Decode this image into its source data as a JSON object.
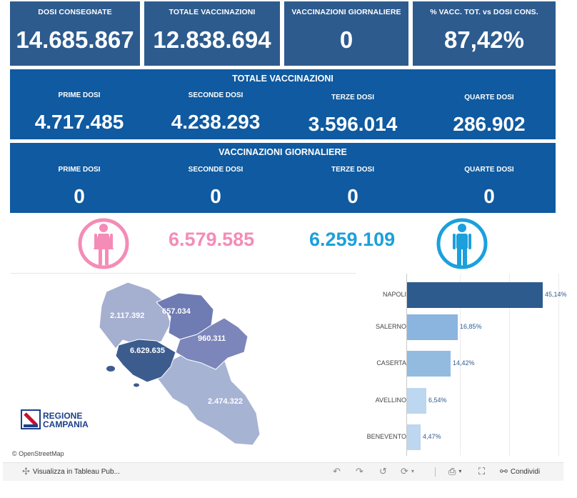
{
  "kpis": [
    {
      "label": "DOSI  CONSEGNATE",
      "value": "14.685.867"
    },
    {
      "label": "TOTALE VACCINAZIONI",
      "value": "12.838.694"
    },
    {
      "label": "VACCINAZIONI GIORNALIERE",
      "value": "0"
    },
    {
      "label": "% VACC. TOT. vs DOSI CONS.",
      "value": "87,42%"
    }
  ],
  "totale_vaccinazioni": {
    "title": "TOTALE VACCINAZIONI",
    "columns": [
      {
        "label": "PRIME DOSI",
        "value": "4.717.485"
      },
      {
        "label": "SECONDE DOSI",
        "value": "4.238.293"
      },
      {
        "label": "TERZE DOSI",
        "value": "3.596.014"
      },
      {
        "label": "QUARTE DOSI",
        "value": "286.902"
      }
    ]
  },
  "vaccinazioni_giornaliere": {
    "title": "VACCINAZIONI GIORNALIERE",
    "columns": [
      {
        "label": "PRIME DOSI",
        "value": "0"
      },
      {
        "label": "SECONDE DOSI",
        "value": "0"
      },
      {
        "label": "TERZE DOSI",
        "value": "0"
      },
      {
        "label": "QUARTE DOSI",
        "value": "0"
      }
    ]
  },
  "gender": {
    "female_value": "6.579.585",
    "male_value": "6.259.109",
    "female_icon": "female-person-icon",
    "male_icon": "male-person-icon",
    "female_color": "#f48cb7",
    "male_color": "#1ba0dc"
  },
  "map": {
    "province_values": {
      "caserta": "2.117.392",
      "benevento": "657.034",
      "avellino": "960.311",
      "napoli": "6.629.635",
      "salerno": "2.474.322"
    },
    "logo_lines": [
      "REGIONE",
      "CAMPANIA"
    ],
    "attribution": "© OpenStreetMap"
  },
  "chart_data": {
    "type": "bar",
    "orientation": "horizontal",
    "categories": [
      "NAPOLI",
      "SALERNO",
      "CASERTA",
      "AVELLINO",
      "BENEVENTO"
    ],
    "values": [
      45.14,
      16.85,
      14.42,
      6.54,
      4.47
    ],
    "labels": [
      "45,14%",
      "16,85%",
      "14,42%",
      "6,54%",
      "4,47%"
    ],
    "colors": [
      "#2d5b8e",
      "#8bb5de",
      "#93bbe0",
      "#bcd7ef",
      "#bcd7ef"
    ],
    "xlim": [
      0,
      50
    ]
  },
  "toolbar": {
    "view_label": "Visualizza in Tableau Pub...",
    "share_label": "Condividi"
  },
  "colors": {
    "kpi_bg": "#2d5b8e",
    "band_bg": "#0f5aa0"
  }
}
